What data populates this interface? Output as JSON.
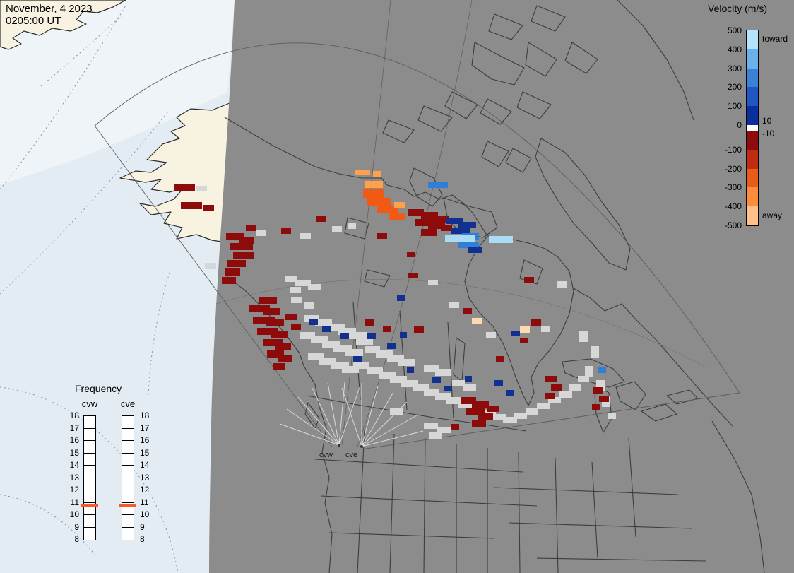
{
  "header": {
    "date": "November, 4 2023",
    "time": "0205:00 UT"
  },
  "velocity_legend": {
    "title": "Velocity (m/s)",
    "toward_label": "toward",
    "away_label": "away",
    "zero_upper_label": "10",
    "zero_lower_label": "-10",
    "ticks": [
      "500",
      "400",
      "300",
      "200",
      "100",
      "0",
      "-100",
      "-200",
      "-300",
      "-400",
      "-500"
    ],
    "segments_toward": [
      "#b5e3fb",
      "#6ab1ec",
      "#3a82d8",
      "#1f58c4",
      "#0b2f9c"
    ],
    "segments_away": [
      "#8e0b0b",
      "#c22b12",
      "#e85c1a",
      "#ff8c3a",
      "#ffc089"
    ]
  },
  "frequency_legend": {
    "title": "Frequency",
    "columns": [
      "cvw",
      "cve"
    ],
    "ticks": [
      "18",
      "17",
      "16",
      "15",
      "14",
      "13",
      "12",
      "11",
      "10",
      "9",
      "8"
    ],
    "marker_value": "11",
    "marker_color": "#f75c28"
  },
  "radar_sites": [
    {
      "label": "cvw"
    },
    {
      "label": "cve"
    }
  ],
  "map": {
    "ocean_color": "#e3ecf3",
    "polar_ocean_color": "#eef4f8",
    "day_land_color": "#f8f3e0",
    "night_color": "#8c8c8c",
    "outline_color": "#3d3d3d",
    "cell_colors": {
      "gs": "#d7d7d7",
      "r": "#8e0b0b",
      "o": "#ffa04d",
      "o2": "#f05a14",
      "b": "#12308f",
      "b2": "#2f7fd6",
      "lb": "#aadcf5",
      "pe": "#ffd9b0"
    },
    "cells": [
      [
        246,
        260,
        30,
        10,
        "r"
      ],
      [
        277,
        263,
        16,
        8,
        "gs"
      ],
      [
        256,
        286,
        30,
        10,
        "r"
      ],
      [
        287,
        290,
        16,
        9,
        "r"
      ],
      [
        348,
        318,
        14,
        9,
        "r"
      ],
      [
        362,
        326,
        14,
        8,
        "gs"
      ],
      [
        290,
        372,
        16,
        9,
        "gs"
      ],
      [
        320,
        330,
        26,
        10,
        "r"
      ],
      [
        338,
        336,
        22,
        10,
        "r"
      ],
      [
        326,
        344,
        32,
        10,
        "r"
      ],
      [
        330,
        356,
        30,
        10,
        "r"
      ],
      [
        322,
        368,
        26,
        10,
        "r"
      ],
      [
        318,
        380,
        22,
        10,
        "r"
      ],
      [
        314,
        392,
        20,
        10,
        "r"
      ],
      [
        398,
        322,
        14,
        9,
        "r"
      ],
      [
        424,
        330,
        16,
        8,
        "gs"
      ],
      [
        448,
        306,
        14,
        8,
        "r"
      ],
      [
        470,
        320,
        14,
        8,
        "gs"
      ],
      [
        492,
        316,
        12,
        8,
        "gs"
      ],
      [
        534,
        330,
        14,
        8,
        "r"
      ],
      [
        576,
        356,
        12,
        8,
        "r"
      ],
      [
        502,
        240,
        22,
        8,
        "o"
      ],
      [
        528,
        242,
        12,
        8,
        "o"
      ],
      [
        516,
        256,
        26,
        10,
        "o"
      ],
      [
        514,
        268,
        30,
        12,
        "o2"
      ],
      [
        520,
        280,
        34,
        12,
        "o2"
      ],
      [
        534,
        292,
        30,
        10,
        "o2"
      ],
      [
        550,
        302,
        24,
        10,
        "o2"
      ],
      [
        558,
        286,
        16,
        9,
        "o"
      ],
      [
        606,
        258,
        28,
        8,
        "b2"
      ],
      [
        578,
        296,
        22,
        10,
        "r"
      ],
      [
        596,
        300,
        24,
        10,
        "r"
      ],
      [
        588,
        310,
        30,
        10,
        "r"
      ],
      [
        606,
        314,
        24,
        10,
        "r"
      ],
      [
        596,
        324,
        22,
        10,
        "r"
      ],
      [
        618,
        306,
        18,
        9,
        "r"
      ],
      [
        624,
        318,
        16,
        9,
        "r"
      ],
      [
        632,
        308,
        24,
        9,
        "b"
      ],
      [
        648,
        314,
        26,
        9,
        "b"
      ],
      [
        638,
        322,
        28,
        9,
        "b"
      ],
      [
        654,
        330,
        24,
        9,
        "b2"
      ],
      [
        630,
        333,
        42,
        10,
        "lb"
      ],
      [
        648,
        342,
        30,
        9,
        "b2"
      ],
      [
        662,
        350,
        20,
        8,
        "b"
      ],
      [
        692,
        334,
        34,
        10,
        "lb"
      ],
      [
        578,
        386,
        14,
        8,
        "r"
      ],
      [
        606,
        396,
        14,
        8,
        "gs"
      ],
      [
        562,
        418,
        12,
        8,
        "b"
      ],
      [
        636,
        428,
        14,
        8,
        "gs"
      ],
      [
        656,
        436,
        12,
        8,
        "r"
      ],
      [
        404,
        390,
        16,
        9,
        "gs"
      ],
      [
        418,
        396,
        22,
        9,
        "gs"
      ],
      [
        436,
        402,
        18,
        9,
        "gs"
      ],
      [
        410,
        406,
        16,
        9,
        "gs"
      ],
      [
        412,
        420,
        16,
        9,
        "gs"
      ],
      [
        430,
        428,
        14,
        9,
        "gs"
      ],
      [
        430,
        446,
        22,
        10,
        "gs"
      ],
      [
        446,
        452,
        24,
        10,
        "gs"
      ],
      [
        462,
        458,
        26,
        10,
        "gs"
      ],
      [
        478,
        464,
        26,
        10,
        "gs"
      ],
      [
        494,
        470,
        26,
        10,
        "gs"
      ],
      [
        424,
        470,
        22,
        10,
        "gs"
      ],
      [
        440,
        476,
        24,
        10,
        "gs"
      ],
      [
        456,
        482,
        26,
        10,
        "gs"
      ],
      [
        472,
        488,
        26,
        10,
        "gs"
      ],
      [
        488,
        494,
        26,
        10,
        "gs"
      ],
      [
        504,
        478,
        24,
        10,
        "gs"
      ],
      [
        436,
        500,
        22,
        10,
        "gs"
      ],
      [
        452,
        506,
        24,
        10,
        "gs"
      ],
      [
        468,
        512,
        26,
        10,
        "gs"
      ],
      [
        484,
        518,
        24,
        10,
        "gs"
      ],
      [
        500,
        512,
        22,
        10,
        "gs"
      ],
      [
        516,
        490,
        22,
        10,
        "gs"
      ],
      [
        532,
        496,
        24,
        10,
        "gs"
      ],
      [
        548,
        502,
        24,
        10,
        "gs"
      ],
      [
        564,
        508,
        24,
        10,
        "gs"
      ],
      [
        520,
        520,
        22,
        10,
        "gs"
      ],
      [
        536,
        526,
        24,
        10,
        "gs"
      ],
      [
        552,
        532,
        24,
        10,
        "gs"
      ],
      [
        568,
        538,
        24,
        10,
        "gs"
      ],
      [
        584,
        544,
        24,
        10,
        "gs"
      ],
      [
        600,
        516,
        22,
        10,
        "gs"
      ],
      [
        616,
        522,
        22,
        10,
        "gs"
      ],
      [
        600,
        550,
        22,
        10,
        "gs"
      ],
      [
        616,
        556,
        22,
        10,
        "gs"
      ],
      [
        632,
        562,
        22,
        10,
        "gs"
      ],
      [
        640,
        538,
        18,
        9,
        "gs"
      ],
      [
        656,
        544,
        18,
        9,
        "gs"
      ],
      [
        648,
        568,
        22,
        10,
        "gs"
      ],
      [
        664,
        574,
        22,
        10,
        "gs"
      ],
      [
        680,
        580,
        22,
        10,
        "gs"
      ],
      [
        696,
        586,
        20,
        9,
        "gs"
      ],
      [
        712,
        590,
        20,
        9,
        "gs"
      ],
      [
        728,
        584,
        18,
        9,
        "gs"
      ],
      [
        744,
        578,
        18,
        9,
        "gs"
      ],
      [
        760,
        570,
        18,
        9,
        "gs"
      ],
      [
        776,
        562,
        18,
        9,
        "gs"
      ],
      [
        792,
        554,
        18,
        9,
        "gs"
      ],
      [
        806,
        544,
        16,
        9,
        "gs"
      ],
      [
        818,
        532,
        16,
        9,
        "gs"
      ],
      [
        366,
        420,
        26,
        10,
        "r"
      ],
      [
        352,
        432,
        30,
        10,
        "r"
      ],
      [
        372,
        436,
        24,
        10,
        "r"
      ],
      [
        358,
        448,
        32,
        10,
        "r"
      ],
      [
        376,
        452,
        26,
        10,
        "r"
      ],
      [
        364,
        464,
        30,
        10,
        "r"
      ],
      [
        384,
        468,
        24,
        10,
        "r"
      ],
      [
        372,
        480,
        28,
        10,
        "r"
      ],
      [
        390,
        486,
        22,
        10,
        "r"
      ],
      [
        378,
        496,
        24,
        10,
        "r"
      ],
      [
        394,
        502,
        20,
        10,
        "r"
      ],
      [
        386,
        514,
        18,
        10,
        "r"
      ],
      [
        404,
        444,
        16,
        9,
        "r"
      ],
      [
        412,
        458,
        14,
        9,
        "r"
      ],
      [
        438,
        452,
        12,
        8,
        "b"
      ],
      [
        456,
        462,
        12,
        8,
        "b"
      ],
      [
        482,
        472,
        12,
        8,
        "b"
      ],
      [
        520,
        472,
        12,
        8,
        "b"
      ],
      [
        548,
        486,
        12,
        8,
        "b"
      ],
      [
        500,
        504,
        12,
        8,
        "b"
      ],
      [
        566,
        470,
        10,
        8,
        "b"
      ],
      [
        612,
        534,
        12,
        8,
        "b"
      ],
      [
        628,
        546,
        12,
        8,
        "b"
      ],
      [
        576,
        520,
        10,
        8,
        "b"
      ],
      [
        658,
        532,
        10,
        8,
        "b"
      ],
      [
        516,
        452,
        14,
        9,
        "r"
      ],
      [
        542,
        462,
        12,
        8,
        "r"
      ],
      [
        586,
        462,
        14,
        9,
        "r"
      ],
      [
        652,
        562,
        22,
        10,
        "r"
      ],
      [
        668,
        568,
        24,
        10,
        "r"
      ],
      [
        660,
        578,
        26,
        10,
        "r"
      ],
      [
        676,
        584,
        22,
        10,
        "r"
      ],
      [
        668,
        594,
        20,
        10,
        "r"
      ],
      [
        690,
        574,
        16,
        9,
        "r"
      ],
      [
        600,
        598,
        20,
        9,
        "gs"
      ],
      [
        618,
        604,
        20,
        9,
        "gs"
      ],
      [
        608,
        612,
        18,
        9,
        "gs"
      ],
      [
        638,
        600,
        12,
        8,
        "r"
      ],
      [
        552,
        578,
        18,
        9,
        "gs"
      ],
      [
        742,
        392,
        14,
        9,
        "r"
      ],
      [
        788,
        398,
        14,
        9,
        "gs"
      ],
      [
        752,
        452,
        14,
        9,
        "r"
      ],
      [
        724,
        468,
        12,
        8,
        "b"
      ],
      [
        766,
        462,
        12,
        8,
        "gs"
      ],
      [
        668,
        450,
        14,
        9,
        "pe"
      ],
      [
        736,
        462,
        14,
        9,
        "pe"
      ],
      [
        700,
        538,
        12,
        8,
        "b"
      ],
      [
        716,
        552,
        12,
        8,
        "b"
      ],
      [
        772,
        532,
        16,
        9,
        "r"
      ],
      [
        780,
        544,
        16,
        9,
        "r"
      ],
      [
        772,
        556,
        14,
        9,
        "r"
      ],
      [
        820,
        468,
        12,
        16,
        "gs"
      ],
      [
        836,
        490,
        12,
        16,
        "gs"
      ],
      [
        828,
        518,
        12,
        16,
        "gs"
      ],
      [
        844,
        538,
        12,
        16,
        "gs"
      ],
      [
        852,
        560,
        12,
        16,
        "gs"
      ],
      [
        840,
        548,
        14,
        9,
        "r"
      ],
      [
        848,
        560,
        14,
        9,
        "r"
      ],
      [
        838,
        572,
        12,
        9,
        "r"
      ],
      [
        846,
        520,
        12,
        8,
        "b2"
      ],
      [
        860,
        584,
        12,
        9,
        "gs"
      ],
      [
        736,
        478,
        12,
        8,
        "r"
      ],
      [
        688,
        470,
        14,
        8,
        "gs"
      ],
      [
        702,
        504,
        12,
        8,
        "r"
      ]
    ]
  }
}
